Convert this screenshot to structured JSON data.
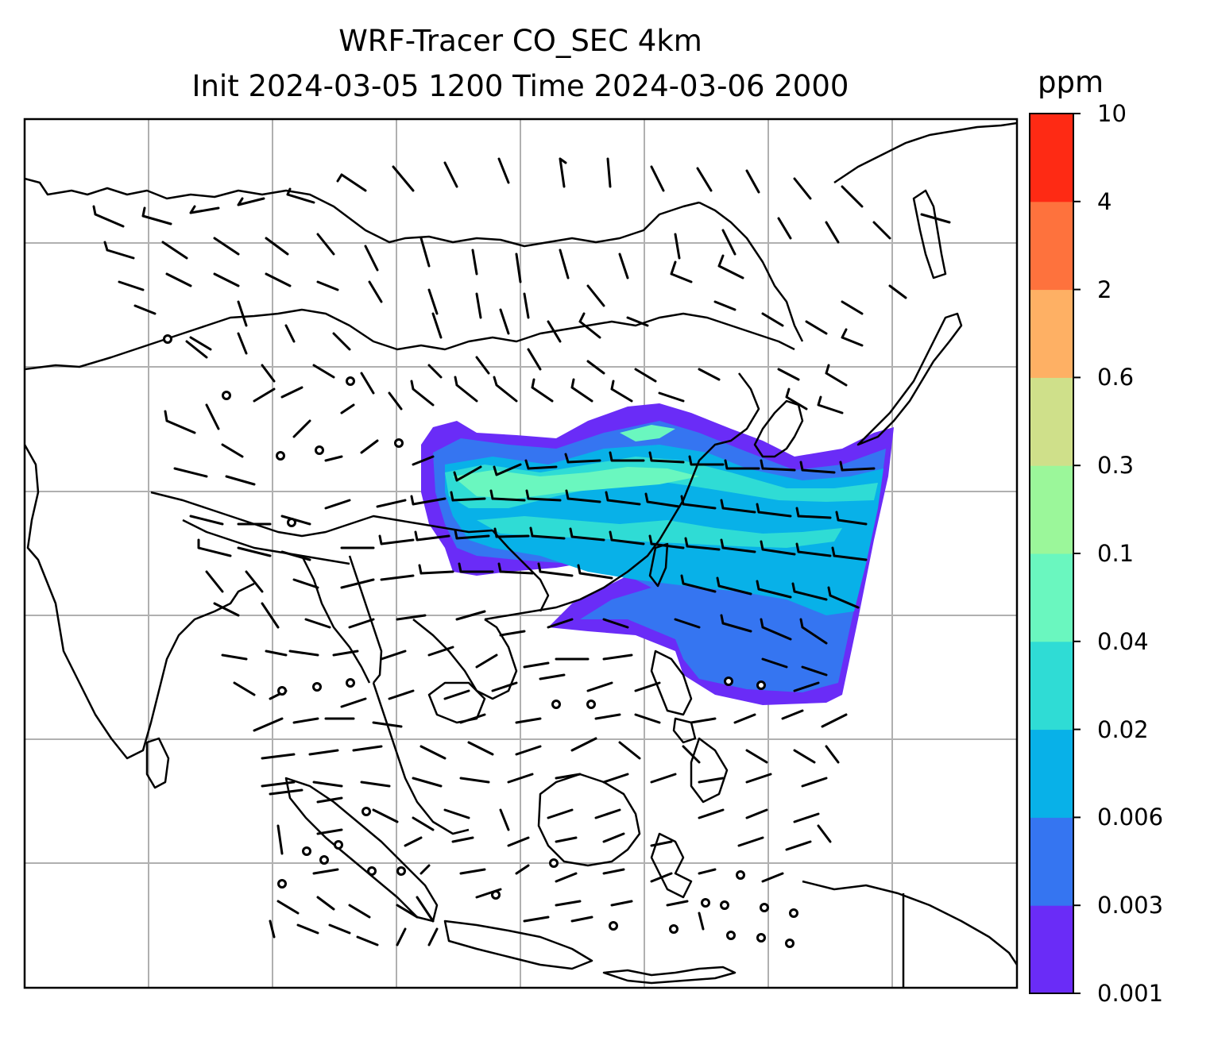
{
  "title": {
    "line1": "WRF-Tracer CO_SEC 4km",
    "line2": "Init 2024-03-05 1200 Time 2024-03-06 2000"
  },
  "colorbar": {
    "unit": "ppm",
    "levels": [
      {
        "label": "0.001",
        "color": "#6a2cf7"
      },
      {
        "label": "0.003",
        "color": "#3575f1"
      },
      {
        "label": "0.006",
        "color": "#08b1e8"
      },
      {
        "label": "0.02",
        "color": "#2fdcd5"
      },
      {
        "label": "0.04",
        "color": "#6af7bf"
      },
      {
        "label": "0.1",
        "color": "#9bf79a"
      },
      {
        "label": "0.3",
        "color": "#cfe08a"
      },
      {
        "label": "0.6",
        "color": "#feb064"
      },
      {
        "label": "2",
        "color": "#fe723d"
      },
      {
        "label": "4",
        "color": "#fe2a14"
      },
      {
        "label": "10",
        "color": null
      }
    ]
  },
  "map": {
    "gridlines": true,
    "grid_color": "#b0b0b0",
    "coastline_color": "#000000",
    "wind_barb_color": "#000000"
  }
}
